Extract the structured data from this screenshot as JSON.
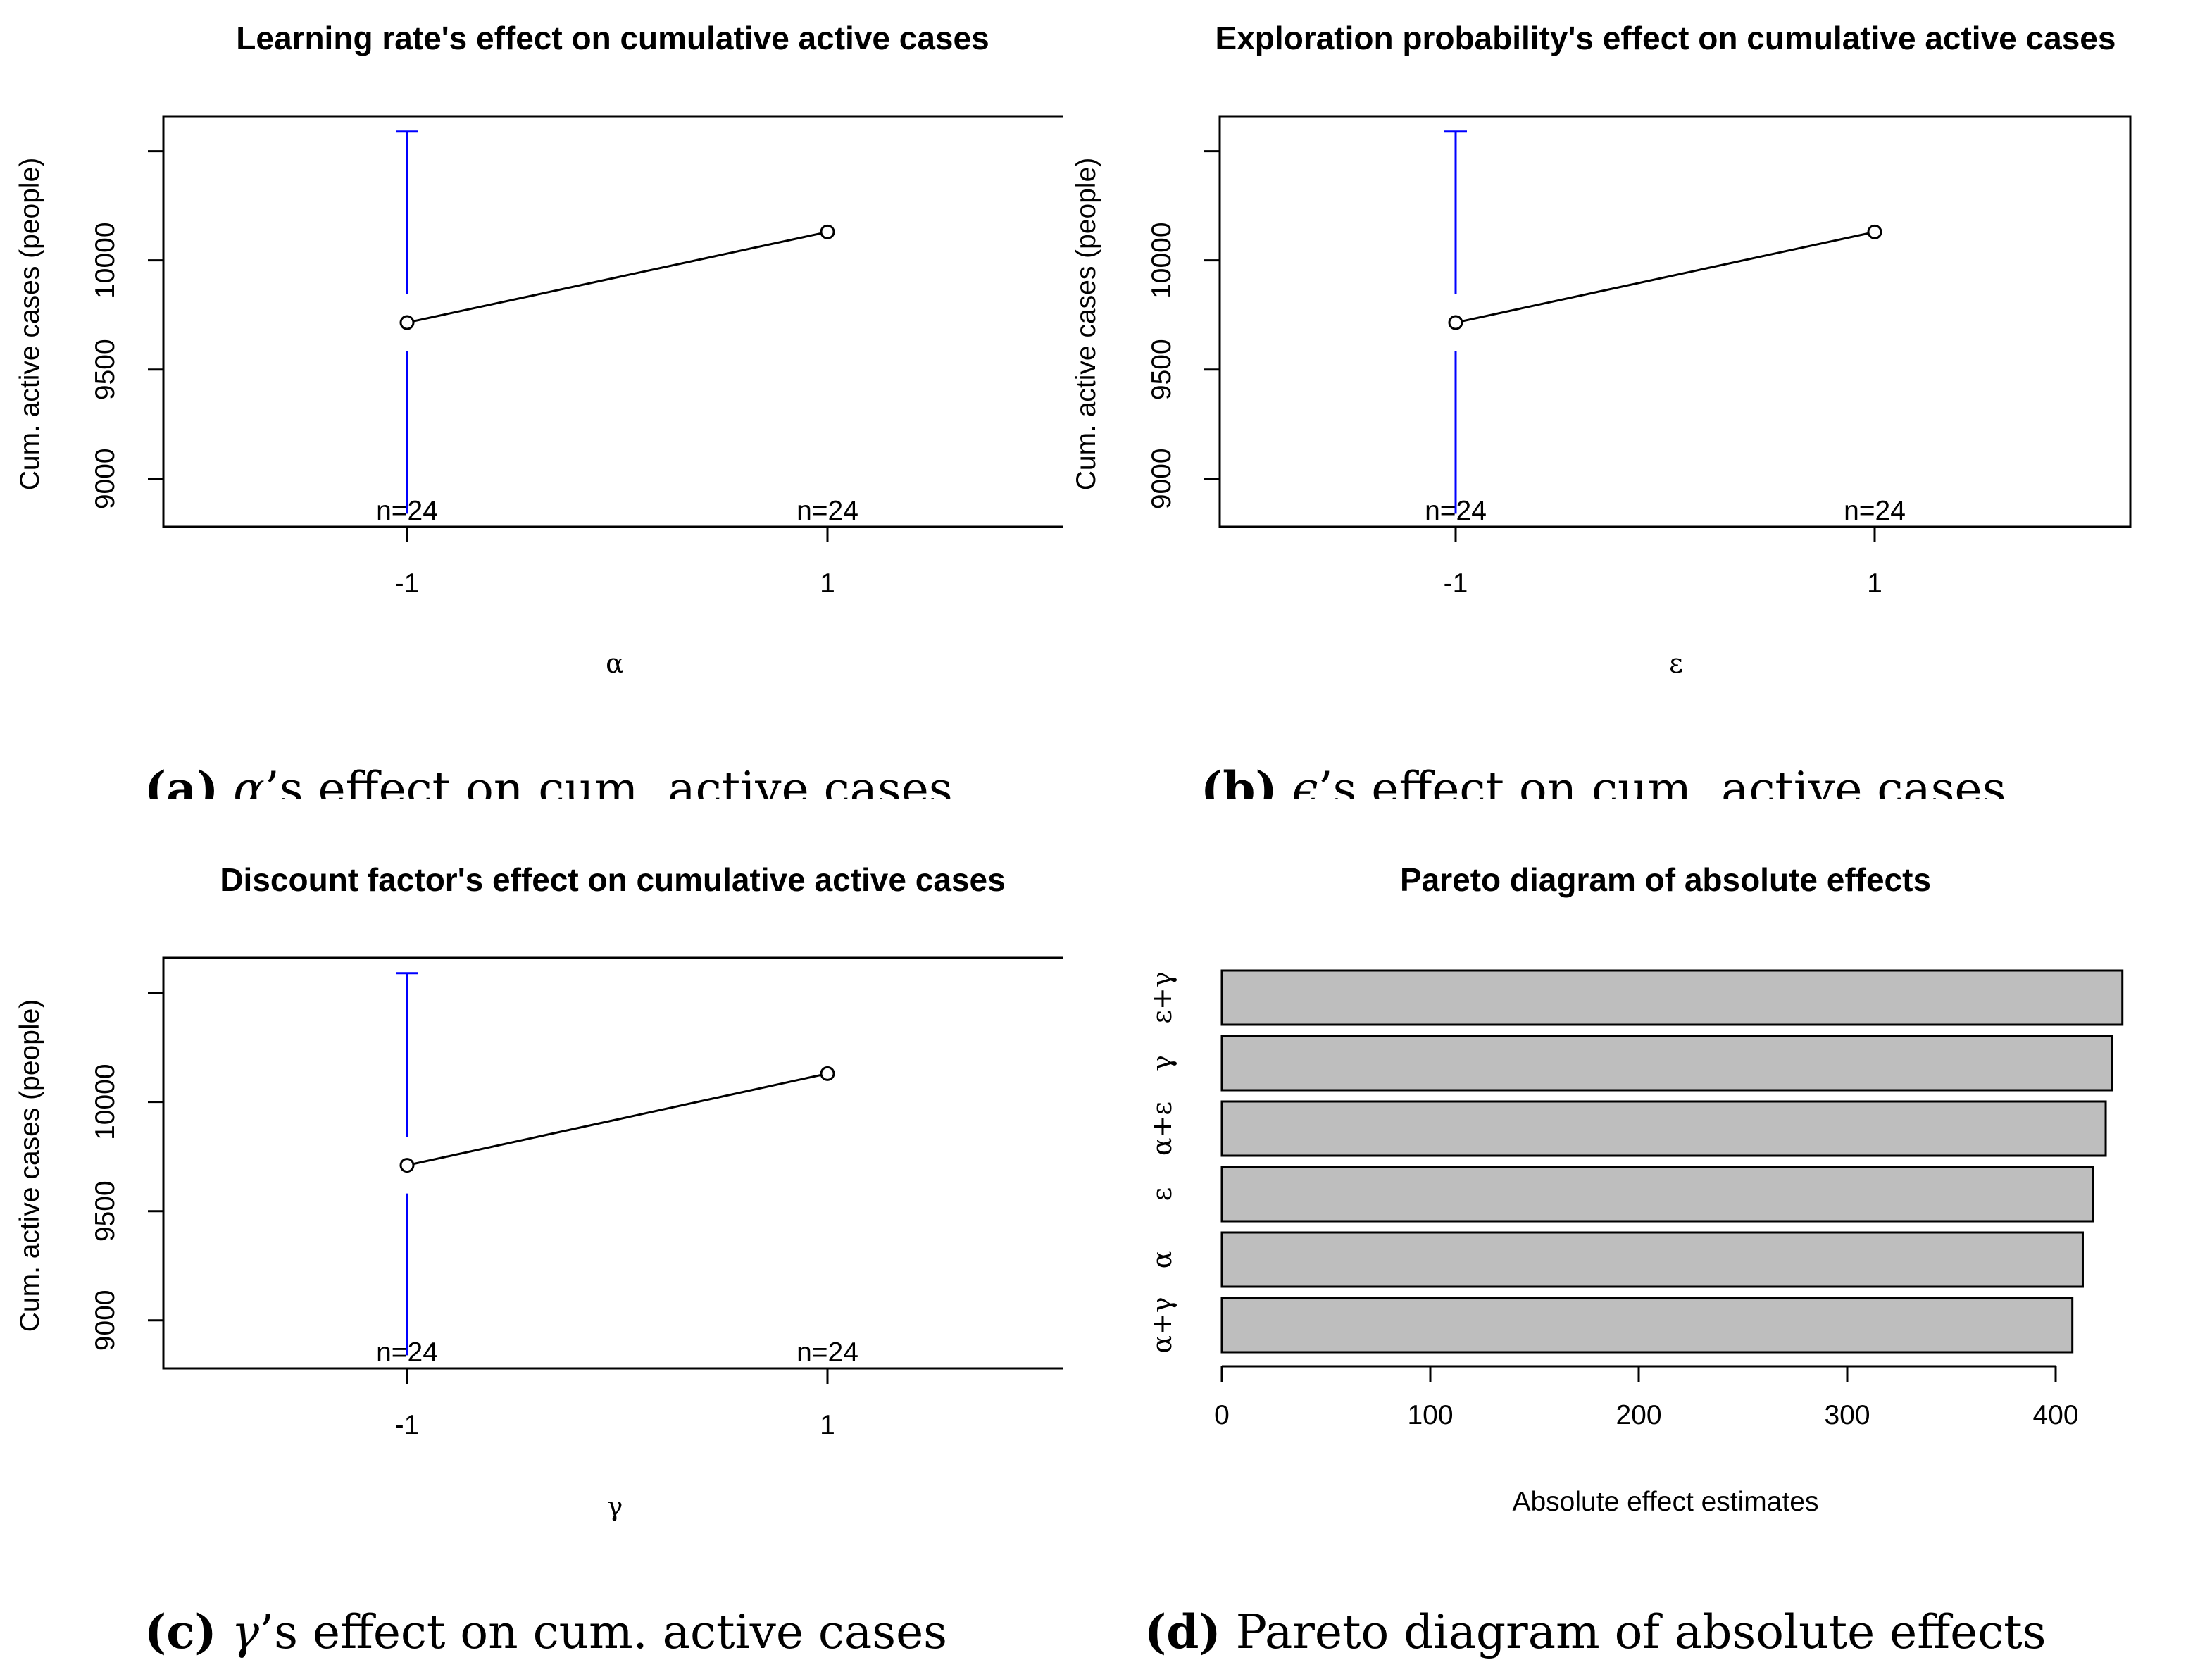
{
  "charts": {
    "a": {
      "title": "Learning rate's effect on cumulative active cases",
      "ylabel": "Cum. active cases (people)",
      "xlabel": "α",
      "caption": {
        "label": "(a)",
        "sym": "α",
        "text": "’s effect on cum. active cases"
      }
    },
    "b": {
      "title": "Exploration probability's effect on cumulative active cases",
      "ylabel": "Cum. active cases (people)",
      "xlabel": "ε",
      "caption": {
        "label": "(b)",
        "sym": "ϵ",
        "text": "’s effect on cum. active cases"
      }
    },
    "c": {
      "title": "Discount factor's effect on cumulative active cases",
      "ylabel": "Cum. active cases (people)",
      "xlabel": "γ",
      "caption": {
        "label": "(c)",
        "sym": "γ",
        "text": "’s effect on cum. active cases"
      }
    },
    "d": {
      "title": "Pareto diagram of absolute effects",
      "xlabel": "Absolute effect estimates",
      "caption": {
        "label": "(d)",
        "text": " Pareto diagram of absolute effects"
      }
    }
  },
  "chart_data": [
    {
      "id": "a",
      "type": "line",
      "title": "Learning rate's effect on cumulative active cases",
      "xlabel": "α",
      "ylabel": "Cum. active cases (people)",
      "x": [
        "-1",
        "1"
      ],
      "y": [
        9715,
        10130
      ],
      "error_bar": {
        "x": "-1",
        "upper": 10590,
        "lower": 8840
      },
      "n_labels": [
        "n=24",
        "n=24"
      ],
      "yticks": [
        9000,
        9500,
        10000
      ],
      "ylim": [
        8780,
        10660
      ]
    },
    {
      "id": "b",
      "type": "line",
      "title": "Exploration probability's effect on cumulative active cases",
      "xlabel": "ε",
      "ylabel": "Cum. active cases (people)",
      "x": [
        "-1",
        "1"
      ],
      "y": [
        9715,
        10130
      ],
      "error_bar": {
        "x": "-1",
        "upper": 10590,
        "lower": 8840
      },
      "n_labels": [
        "n=24",
        "n=24"
      ],
      "yticks": [
        9000,
        9500,
        10000
      ],
      "ylim": [
        8780,
        10660
      ]
    },
    {
      "id": "c",
      "type": "line",
      "title": "Discount factor's effect on cumulative active cases",
      "xlabel": "γ",
      "ylabel": "Cum. active cases (people)",
      "x": [
        "-1",
        "1"
      ],
      "y": [
        9710,
        10130
      ],
      "error_bar": {
        "x": "-1",
        "upper": 10590,
        "lower": 8840
      },
      "n_labels": [
        "n=24",
        "n=24"
      ],
      "yticks": [
        9000,
        9500,
        10000
      ],
      "ylim": [
        8780,
        10660
      ]
    },
    {
      "id": "d",
      "type": "bar",
      "orientation": "horizontal",
      "title": "Pareto diagram of absolute effects",
      "xlabel": "Absolute effect estimates",
      "categories": [
        "ε+γ",
        "γ",
        "α+ε",
        "ε",
        "α",
        "α+γ"
      ],
      "values": [
        432,
        427,
        424,
        418,
        413,
        408
      ],
      "xticks": [
        0,
        100,
        200,
        300,
        400
      ],
      "xlim": [
        0,
        432
      ]
    }
  ]
}
